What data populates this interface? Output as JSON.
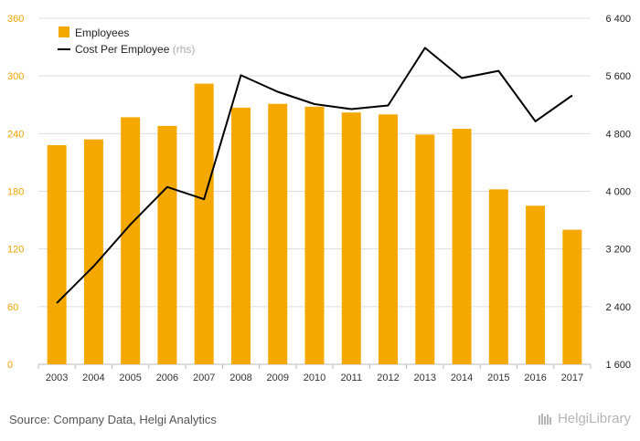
{
  "chart_data": {
    "type": "bar",
    "categories": [
      "2003",
      "2004",
      "2005",
      "2006",
      "2007",
      "2008",
      "2009",
      "2010",
      "2011",
      "2012",
      "2013",
      "2014",
      "2015",
      "2016",
      "2017"
    ],
    "series": [
      {
        "name": "Employees",
        "kind": "bar",
        "axis": "left",
        "color": "#f5a800",
        "values": [
          228,
          234,
          257,
          248,
          292,
          267,
          271,
          268,
          262,
          260,
          239,
          245,
          182,
          165,
          140
        ]
      },
      {
        "name": "Cost Per Employee",
        "kind": "line",
        "axis": "right",
        "color": "#000000",
        "values": [
          2450,
          2960,
          3540,
          4060,
          3890,
          5610,
          5380,
          5210,
          5140,
          5190,
          5990,
          5570,
          5670,
          4970,
          5330
        ]
      }
    ],
    "legend": {
      "position": "top-left",
      "rhs_suffix": "(rhs)"
    },
    "y_left": {
      "ticks": [
        "0",
        "60",
        "120",
        "180",
        "240",
        "300",
        "360"
      ],
      "min": 0,
      "max": 360
    },
    "y_right": {
      "ticks": [
        "1 600",
        "2 400",
        "3 200",
        "4 000",
        "4 800",
        "5 600",
        "6 400"
      ],
      "min": 1600,
      "max": 6400
    },
    "grid": true
  },
  "footer": {
    "source": "Source: Company Data, Helgi Analytics",
    "brand": "HelgiLibrary"
  }
}
